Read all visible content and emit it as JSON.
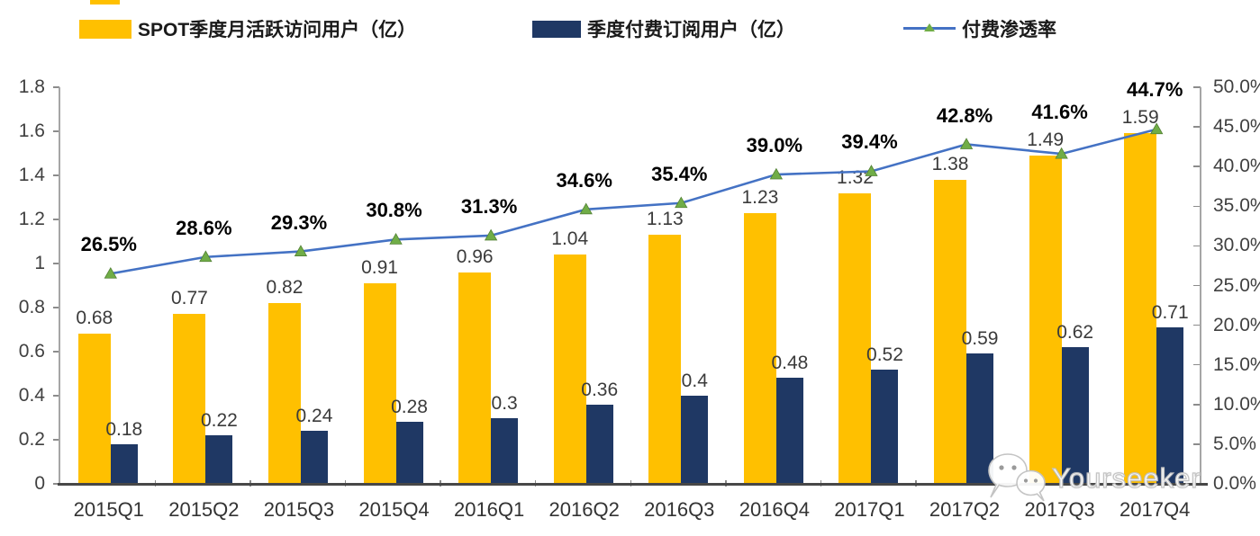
{
  "legend": {
    "items": [
      {
        "label": "SPOT季度月活跃访问用户（亿）",
        "swatch": "bar",
        "color": "#FFC000"
      },
      {
        "label": "季度付费订阅用户（亿）",
        "swatch": "bar",
        "color": "#1F3864"
      },
      {
        "label": "付费渗透率",
        "swatch": "line",
        "color": "#4472C4",
        "marker_color": "#70AD47"
      }
    ]
  },
  "chart_data": {
    "type": "combo-bar-line",
    "categories": [
      "2015Q1",
      "2015Q2",
      "2015Q3",
      "2015Q4",
      "2016Q1",
      "2016Q2",
      "2016Q3",
      "2016Q4",
      "2017Q1",
      "2017Q2",
      "2017Q3",
      "2017Q4"
    ],
    "series": [
      {
        "name": "SPOT季度月活跃访问用户（亿）",
        "type": "bar",
        "axis": "left",
        "color": "#FFC000",
        "values": [
          0.68,
          0.77,
          0.82,
          0.91,
          0.96,
          1.04,
          1.13,
          1.23,
          1.32,
          1.38,
          1.49,
          1.59
        ]
      },
      {
        "name": "季度付费订阅用户（亿）",
        "type": "bar",
        "axis": "left",
        "color": "#1F3864",
        "values": [
          0.18,
          0.22,
          0.24,
          0.28,
          0.3,
          0.36,
          0.4,
          0.48,
          0.52,
          0.59,
          0.62,
          0.71
        ]
      },
      {
        "name": "付费渗透率",
        "type": "line",
        "axis": "right",
        "color": "#4472C4",
        "marker": "triangle",
        "marker_color": "#70AD47",
        "values": [
          26.5,
          28.6,
          29.3,
          30.8,
          31.3,
          34.6,
          35.4,
          39.0,
          39.4,
          42.8,
          41.6,
          44.7
        ]
      }
    ],
    "left_axis": {
      "min": 0,
      "max": 1.8,
      "step": 0.2,
      "tick_labels": [
        "0",
        "0.2",
        "0.4",
        "0.6",
        "0.8",
        "1",
        "1.2",
        "1.4",
        "1.6",
        "1.8"
      ]
    },
    "right_axis": {
      "min": 0,
      "max": 50,
      "step": 5,
      "tick_labels": [
        "0.0%",
        "5.0%",
        "10.0%",
        "15.0%",
        "20.0%",
        "25.0%",
        "30.0%",
        "35.0%",
        "40.0%",
        "45.0%",
        "50.0%"
      ]
    },
    "grid": false,
    "legend_position": "top"
  },
  "watermark": {
    "text": "Yourseeker",
    "icon": "wechat-icon"
  }
}
